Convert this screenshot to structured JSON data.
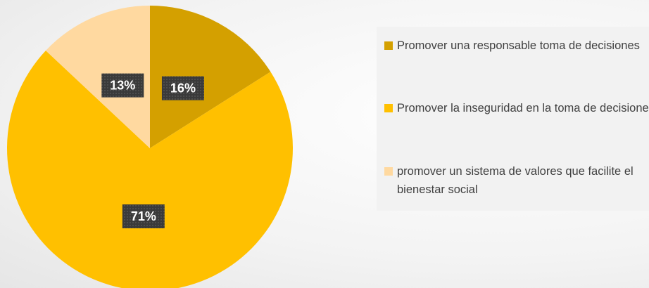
{
  "chart_data": {
    "type": "pie",
    "categories": [
      "Promover una responsable toma de decisiones",
      "Promover la inseguridad en la toma de decisiones",
      "promover un sistema de valores que facilite el bienestar social"
    ],
    "values": [
      16,
      71,
      13
    ],
    "value_labels": [
      "16%",
      "71%",
      "13%"
    ],
    "colors": [
      "#d4a000",
      "#ffc000",
      "#ffd9a0"
    ]
  }
}
